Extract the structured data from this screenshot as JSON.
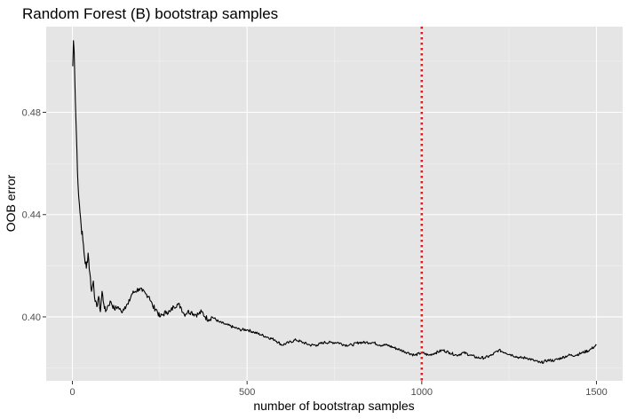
{
  "chart_data": {
    "type": "line",
    "title": "Random Forest (B) bootstrap samples",
    "xlabel": "number of bootstrap samples",
    "ylabel": "OOB error",
    "xlim": [
      -75,
      1575
    ],
    "ylim": [
      0.375,
      0.5135
    ],
    "x_ticks": [
      0,
      500,
      1000,
      1500
    ],
    "x_tick_labels": [
      "0",
      "500",
      "1000",
      "1500"
    ],
    "y_ticks": [
      0.4,
      0.44,
      0.48
    ],
    "y_tick_labels": [
      "0.40",
      "0.44",
      "0.48"
    ],
    "grid": true,
    "background": "#e5e5e5",
    "line_color": "#000000",
    "reference_line": {
      "x": 1000,
      "color": "#e41a1c",
      "style": "dotted"
    },
    "series": [
      {
        "x": [
          1,
          3,
          5,
          7,
          10,
          13,
          16,
          20,
          25,
          30,
          35,
          40,
          45,
          50,
          55,
          60,
          65,
          70,
          75,
          80,
          85,
          90,
          95,
          100,
          110,
          120,
          130,
          140,
          150,
          160,
          170,
          180,
          190,
          200,
          210,
          220,
          230,
          240,
          250,
          260,
          270,
          280,
          290,
          300,
          310,
          320,
          330,
          340,
          350,
          360,
          370,
          380,
          390,
          400,
          420,
          440,
          460,
          480,
          500,
          520,
          540,
          560,
          580,
          600,
          620,
          640,
          660,
          680,
          700,
          720,
          740,
          760,
          780,
          800,
          820,
          840,
          860,
          880,
          900,
          920,
          940,
          960,
          980,
          1000,
          1020,
          1040,
          1060,
          1080,
          1100,
          1120,
          1140,
          1160,
          1180,
          1200,
          1220,
          1240,
          1260,
          1280,
          1300,
          1320,
          1340,
          1360,
          1380,
          1400,
          1420,
          1440,
          1460,
          1480,
          1500
        ],
        "y": [
          0.498,
          0.508,
          0.504,
          0.492,
          0.478,
          0.465,
          0.452,
          0.444,
          0.436,
          0.43,
          0.423,
          0.419,
          0.425,
          0.417,
          0.41,
          0.414,
          0.406,
          0.404,
          0.408,
          0.402,
          0.41,
          0.405,
          0.402,
          0.404,
          0.406,
          0.403,
          0.404,
          0.402,
          0.404,
          0.405,
          0.409,
          0.41,
          0.411,
          0.41,
          0.409,
          0.408,
          0.404,
          0.403,
          0.4,
          0.401,
          0.402,
          0.402,
          0.404,
          0.405,
          0.404,
          0.401,
          0.402,
          0.402,
          0.401,
          0.401,
          0.402,
          0.4,
          0.399,
          0.4,
          0.398,
          0.397,
          0.396,
          0.395,
          0.395,
          0.394,
          0.393,
          0.392,
          0.391,
          0.389,
          0.39,
          0.391,
          0.39,
          0.389,
          0.389,
          0.39,
          0.39,
          0.39,
          0.389,
          0.389,
          0.39,
          0.39,
          0.39,
          0.389,
          0.389,
          0.388,
          0.387,
          0.386,
          0.385,
          0.386,
          0.385,
          0.386,
          0.387,
          0.386,
          0.385,
          0.386,
          0.385,
          0.384,
          0.384,
          0.385,
          0.387,
          0.386,
          0.385,
          0.384,
          0.384,
          0.383,
          0.382,
          0.383,
          0.383,
          0.384,
          0.385,
          0.385,
          0.386,
          0.387,
          0.389
        ]
      }
    ]
  }
}
